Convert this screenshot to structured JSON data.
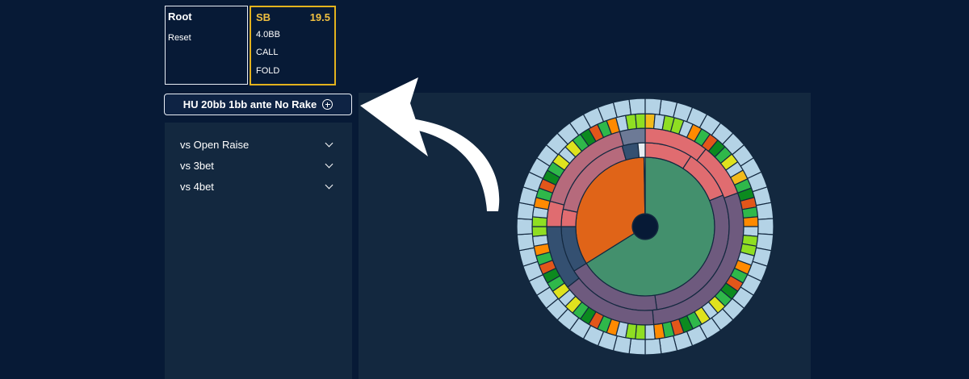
{
  "node_root": {
    "title": "Root",
    "reset_label": "Reset"
  },
  "node_sb": {
    "position": "SB",
    "stack": "19.5",
    "actions": [
      "4.0BB",
      "CALL",
      "FOLD"
    ]
  },
  "format_button": {
    "label": "HU 20bb 1bb ante No Rake",
    "icon": "plus-circle-icon"
  },
  "menu": {
    "items": [
      {
        "label": "vs Open Raise",
        "icon": "chevron-down-icon"
      },
      {
        "label": "vs 3bet",
        "icon": "chevron-down-icon"
      },
      {
        "label": "vs 4bet",
        "icon": "chevron-down-icon"
      }
    ]
  },
  "colors": {
    "background": "#071a36",
    "panel": "#13283f",
    "accent_border": "#e3b21d",
    "arrow": "#ffffff"
  }
}
